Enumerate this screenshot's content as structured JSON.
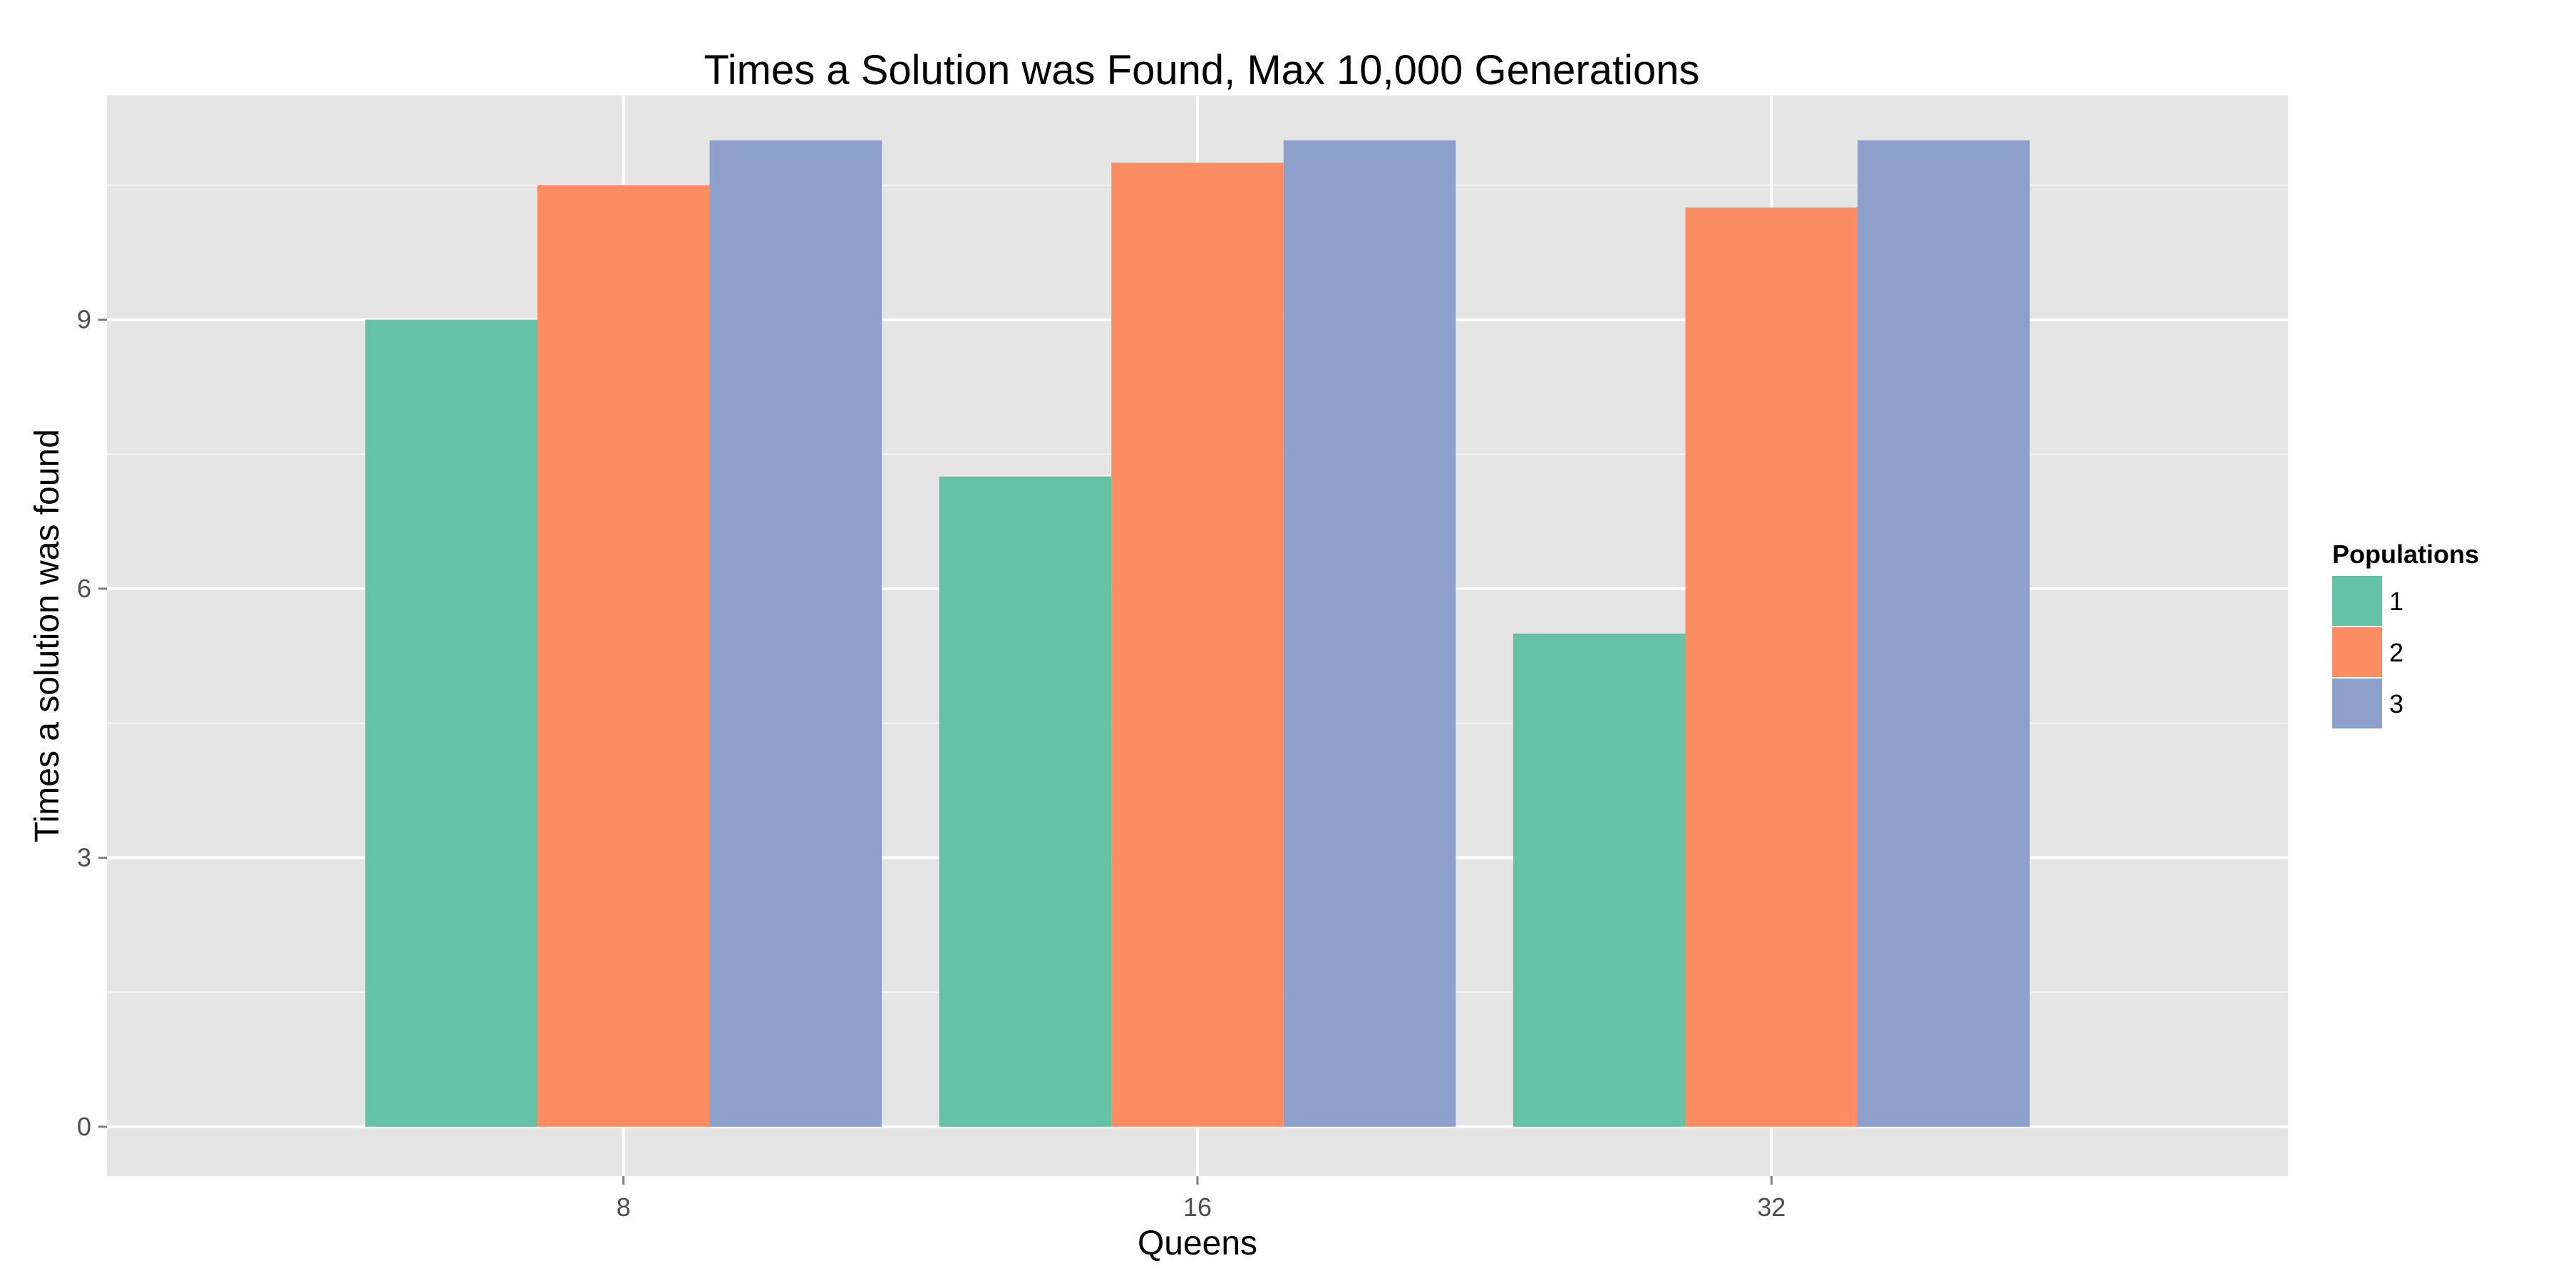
{
  "chart_data": {
    "type": "bar",
    "title": "Times a Solution was Found, Max 10,000 Generations",
    "xlabel": "Queens",
    "ylabel": "Times a solution was found",
    "categories": [
      "8",
      "16",
      "32"
    ],
    "series": [
      {
        "name": "1",
        "values": [
          9,
          7.25,
          5.5
        ]
      },
      {
        "name": "2",
        "values": [
          10.5,
          10.75,
          10.25
        ]
      },
      {
        "name": "3",
        "values": [
          11,
          11,
          11
        ]
      }
    ],
    "ylim": [
      -0.55,
      11.5
    ],
    "yticks": [
      0,
      3,
      6,
      9
    ],
    "yticks_minor": [
      1.5,
      4.5,
      7.5,
      10.5
    ],
    "grid": true,
    "legend": {
      "title": "Populations",
      "position": "right"
    },
    "colors": {
      "series": [
        "#66c2a5",
        "#fc8d62",
        "#8da0cb"
      ],
      "panel_background": "#e5e5e5",
      "gridline": "#ffffff",
      "tick_text": "#4d4d4d",
      "tick_mark": "#7f7f7f"
    }
  }
}
